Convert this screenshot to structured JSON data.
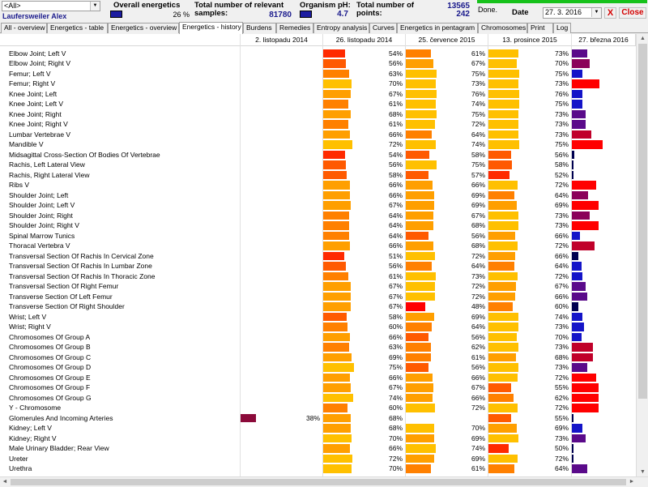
{
  "header": {
    "filter_value": "<All>",
    "user_name": "Laufersweiler Alex",
    "overall_label": "Overall energetics",
    "overall_value": "26 %",
    "samples_label_1": "Total number of relevant",
    "samples_label_2": "samples:",
    "samples_value": "81780",
    "ph_label": "Organism pH:",
    "ph_value": "4.7",
    "points_label_1": "Total number of",
    "points_label_2": "points:",
    "points_value_1": "13565",
    "points_value_2": "242",
    "done_label": "Done.",
    "progress": 1.0,
    "date_label": "Date",
    "date_value": "27. 3. 2016",
    "close_x": "X",
    "close_label": "Close"
  },
  "tabs": [
    {
      "label": "All - overview",
      "active": false
    },
    {
      "label": "Energetics - table",
      "active": false
    },
    {
      "label": "Energetics - overview",
      "active": false
    },
    {
      "label": "Energetics - history",
      "active": true
    },
    {
      "label": "Burdens",
      "active": false
    },
    {
      "label": "Remedies",
      "active": false
    },
    {
      "label": "Entropy analysis",
      "active": false
    },
    {
      "label": "Curves",
      "active": false
    },
    {
      "label": "Energetics in pentagram",
      "active": false
    },
    {
      "label": "Chromosomes",
      "active": false
    },
    {
      "label": "Print",
      "active": false
    },
    {
      "label": "Log",
      "active": false
    }
  ],
  "columns": [
    "2. listopadu 2014",
    "26. listopadu 2014",
    "25. července 2015",
    "13. prosince 2015",
    "27. března 2016"
  ],
  "rows": [
    {
      "name": "Elbow Joint; Left V",
      "values": [
        null,
        54,
        61,
        73,
        31
      ]
    },
    {
      "name": "Elbow Joint; Right V",
      "values": [
        null,
        56,
        67,
        70,
        37
      ]
    },
    {
      "name": "Femur; Left V",
      "values": [
        null,
        63,
        75,
        75,
        22
      ]
    },
    {
      "name": "Femur; Right V",
      "values": [
        null,
        70,
        73,
        73,
        57
      ]
    },
    {
      "name": "Knee Joint; Left",
      "values": [
        null,
        67,
        76,
        76,
        22
      ]
    },
    {
      "name": "Knee Joint; Left V",
      "values": [
        null,
        61,
        74,
        75,
        22
      ]
    },
    {
      "name": "Knee Joint; Right",
      "values": [
        null,
        68,
        75,
        73,
        28
      ]
    },
    {
      "name": "Knee Joint; Right V",
      "values": [
        null,
        61,
        72,
        73,
        28
      ]
    },
    {
      "name": "Lumbar Vertebrae V",
      "values": [
        null,
        66,
        64,
        73,
        40
      ]
    },
    {
      "name": "Mandible V",
      "values": [
        null,
        72,
        74,
        75,
        64
      ]
    },
    {
      "name": "Midsagittal Cross-Section Of Bodies Of Vertebrae",
      "values": [
        null,
        54,
        58,
        56,
        5
      ]
    },
    {
      "name": "Rachis, Left Lateral View",
      "values": [
        null,
        56,
        75,
        58,
        4
      ]
    },
    {
      "name": "Rachis, Right Lateral View",
      "values": [
        null,
        58,
        57,
        52,
        2
      ]
    },
    {
      "name": "Ribs V",
      "values": [
        null,
        66,
        66,
        72,
        50
      ]
    },
    {
      "name": "Shoulder Joint; Left",
      "values": [
        null,
        66,
        69,
        64,
        34
      ]
    },
    {
      "name": "Shoulder Joint; Left V",
      "values": [
        null,
        67,
        69,
        69,
        55
      ]
    },
    {
      "name": "Shoulder Joint; Right",
      "values": [
        null,
        64,
        67,
        73,
        37
      ]
    },
    {
      "name": "Shoulder Joint; Right V",
      "values": [
        null,
        64,
        68,
        73,
        55
      ]
    },
    {
      "name": "Spinal Marrow Tunics",
      "values": [
        null,
        64,
        56,
        66,
        17
      ]
    },
    {
      "name": "Thoracal Vertebra V",
      "values": [
        null,
        66,
        68,
        72,
        47
      ]
    },
    {
      "name": "Transversal Section Of Rachis In Cervical Zone",
      "values": [
        null,
        51,
        72,
        66,
        14
      ]
    },
    {
      "name": "Transversal Section Of Rachis In Lumbar Zone",
      "values": [
        null,
        56,
        64,
        64,
        20
      ]
    },
    {
      "name": "Transversal Section Of Rachis In Thoracic Zone",
      "values": [
        null,
        61,
        73,
        72,
        22
      ]
    },
    {
      "name": "Transversal Section Of Right Femur",
      "values": [
        null,
        67,
        72,
        67,
        28
      ]
    },
    {
      "name": "Transverse Section Of Left Femur",
      "values": [
        null,
        67,
        72,
        66,
        31
      ]
    },
    {
      "name": "Transverse Section Of Right Shoulder",
      "values": [
        null,
        67,
        48,
        60,
        14
      ]
    },
    {
      "name": "Wrist; Left V",
      "values": [
        null,
        58,
        69,
        74,
        22
      ]
    },
    {
      "name": "Wrist; Right V",
      "values": [
        null,
        60,
        64,
        73,
        25
      ]
    },
    {
      "name": "Chromosomes Of Group A",
      "values": [
        null,
        66,
        56,
        70,
        20
      ]
    },
    {
      "name": "Chromosomes Of Group B",
      "values": [
        null,
        63,
        62,
        73,
        44
      ]
    },
    {
      "name": "Chromosomes Of Group C",
      "values": [
        null,
        69,
        61,
        68,
        44
      ]
    },
    {
      "name": "Chromosomes Of Group D",
      "values": [
        null,
        75,
        56,
        73,
        31
      ]
    },
    {
      "name": "Chromosomes Of Group E",
      "values": [
        null,
        66,
        66,
        72,
        50
      ]
    },
    {
      "name": "Chromosomes Of Group F",
      "values": [
        null,
        67,
        67,
        55,
        55
      ]
    },
    {
      "name": "Chromosomes Of Group G",
      "values": [
        null,
        74,
        66,
        62,
        55
      ]
    },
    {
      "name": "Y - Chromosome",
      "values": [
        null,
        60,
        72,
        72,
        55
      ]
    },
    {
      "name": "Glomerules And Incoming Arteries",
      "values": [
        38,
        68,
        null,
        55,
        2
      ]
    },
    {
      "name": "Kidney; Left V",
      "values": [
        null,
        68,
        70,
        69,
        22
      ]
    },
    {
      "name": "Kidney; Right V",
      "values": [
        null,
        70,
        69,
        73,
        28
      ]
    },
    {
      "name": "Male Urinary Bladder; Rear View",
      "values": [
        null,
        66,
        74,
        50,
        2
      ]
    },
    {
      "name": "Ureter",
      "values": [
        null,
        72,
        69,
        72,
        2
      ]
    },
    {
      "name": "Urethra",
      "values": [
        null,
        70,
        61,
        64,
        31
      ]
    }
  ],
  "scroll": {
    "up": "▲",
    "down": "▼",
    "left": "◄",
    "right": "►"
  }
}
